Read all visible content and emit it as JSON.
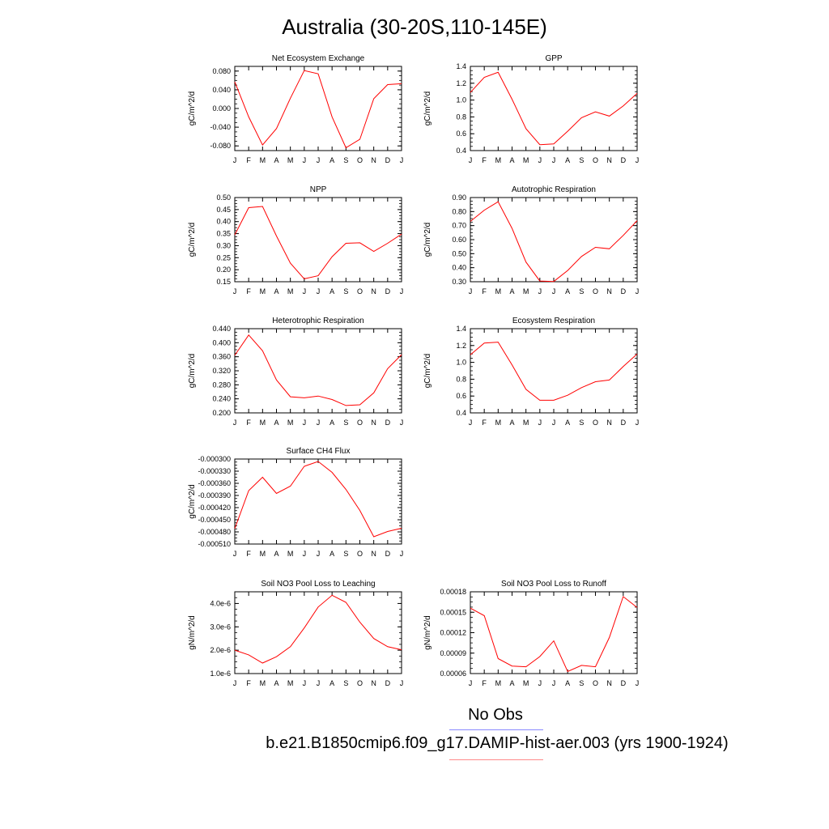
{
  "page": {
    "title": "Australia (30-20S,110-145E)",
    "legend": {
      "obs_label": "No Obs",
      "obs_color": "#8a8aff",
      "model_label": "b.e21.B1850cmip6.f09_g17.DAMIP-hist-aer.003 (yrs 1900-1924)",
      "model_color": "#ff0000"
    }
  },
  "chart_data": [
    {
      "type": "line",
      "title": "Net Ecosystem Exchange",
      "ylabel": "gC/m^2/d",
      "categories": [
        "J",
        "F",
        "M",
        "A",
        "M",
        "J",
        "J",
        "A",
        "S",
        "O",
        "N",
        "D",
        "J"
      ],
      "ylim": [
        -0.09,
        0.09
      ],
      "yticks": [
        -0.08,
        -0.04,
        0.0,
        0.04,
        0.08
      ],
      "ytick_labels": [
        "-0.080",
        "-0.040",
        "0.000",
        "0.040",
        "0.080"
      ],
      "series": [
        {
          "values": [
            0.057,
            -0.018,
            -0.078,
            -0.043,
            0.022,
            0.081,
            0.074,
            -0.018,
            -0.084,
            -0.066,
            0.021,
            0.051,
            0.053
          ]
        }
      ]
    },
    {
      "type": "line",
      "title": "GPP",
      "ylabel": "gC/m^2/d",
      "categories": [
        "J",
        "F",
        "M",
        "A",
        "M",
        "J",
        "J",
        "A",
        "S",
        "O",
        "N",
        "D",
        "J"
      ],
      "ylim": [
        0.4,
        1.4
      ],
      "yticks": [
        0.4,
        0.6,
        0.8,
        1.0,
        1.2,
        1.4
      ],
      "ytick_labels": [
        "0.4",
        "0.6",
        "0.8",
        "1.0",
        "1.2",
        "1.4"
      ],
      "series": [
        {
          "values": [
            1.09,
            1.27,
            1.33,
            1.01,
            0.66,
            0.47,
            0.48,
            0.63,
            0.79,
            0.86,
            0.81,
            0.93,
            1.08
          ]
        }
      ]
    },
    {
      "type": "line",
      "title": "NPP",
      "ylabel": "gC/m^2/d",
      "categories": [
        "J",
        "F",
        "M",
        "A",
        "M",
        "J",
        "J",
        "A",
        "S",
        "O",
        "N",
        "D",
        "J"
      ],
      "ylim": [
        0.15,
        0.5
      ],
      "yticks": [
        0.15,
        0.2,
        0.25,
        0.3,
        0.35,
        0.4,
        0.45,
        0.5
      ],
      "ytick_labels": [
        "0.15",
        "0.20",
        "0.25",
        "0.30",
        "0.35",
        "0.40",
        "0.45",
        "0.50"
      ],
      "series": [
        {
          "values": [
            0.345,
            0.458,
            0.463,
            0.34,
            0.227,
            0.162,
            0.175,
            0.254,
            0.31,
            0.312,
            0.276,
            0.31,
            0.348
          ]
        }
      ]
    },
    {
      "type": "line",
      "title": "Autotrophic Respiration",
      "ylabel": "gC/m^2/d",
      "categories": [
        "J",
        "F",
        "M",
        "A",
        "M",
        "J",
        "J",
        "A",
        "S",
        "O",
        "N",
        "D",
        "J"
      ],
      "ylim": [
        0.3,
        0.9
      ],
      "yticks": [
        0.3,
        0.4,
        0.5,
        0.6,
        0.7,
        0.8,
        0.9
      ],
      "ytick_labels": [
        "0.30",
        "0.40",
        "0.50",
        "0.60",
        "0.70",
        "0.80",
        "0.90"
      ],
      "series": [
        {
          "values": [
            0.73,
            0.81,
            0.87,
            0.68,
            0.44,
            0.305,
            0.302,
            0.38,
            0.48,
            0.545,
            0.535,
            0.63,
            0.735
          ]
        }
      ]
    },
    {
      "type": "line",
      "title": "Heterotrophic Respiration",
      "ylabel": "gC/m^2/d",
      "categories": [
        "J",
        "F",
        "M",
        "A",
        "M",
        "J",
        "J",
        "A",
        "S",
        "O",
        "N",
        "D",
        "J"
      ],
      "ylim": [
        0.2,
        0.44
      ],
      "yticks": [
        0.2,
        0.24,
        0.28,
        0.32,
        0.36,
        0.4,
        0.44
      ],
      "ytick_labels": [
        "0.200",
        "0.240",
        "0.280",
        "0.320",
        "0.360",
        "0.400",
        "0.440"
      ],
      "series": [
        {
          "values": [
            0.364,
            0.422,
            0.377,
            0.294,
            0.246,
            0.243,
            0.248,
            0.238,
            0.221,
            0.223,
            0.257,
            0.326,
            0.366
          ]
        }
      ]
    },
    {
      "type": "line",
      "title": "Ecosystem Respiration",
      "ylabel": "gC/m^2/d",
      "categories": [
        "J",
        "F",
        "M",
        "A",
        "M",
        "J",
        "J",
        "A",
        "S",
        "O",
        "N",
        "D",
        "J"
      ],
      "ylim": [
        0.4,
        1.4
      ],
      "yticks": [
        0.4,
        0.6,
        0.8,
        1.0,
        1.2,
        1.4
      ],
      "ytick_labels": [
        "0.4",
        "0.6",
        "0.8",
        "1.0",
        "1.2",
        "1.4"
      ],
      "series": [
        {
          "values": [
            1.09,
            1.23,
            1.24,
            0.97,
            0.68,
            0.55,
            0.55,
            0.61,
            0.7,
            0.77,
            0.79,
            0.95,
            1.1
          ]
        }
      ]
    },
    {
      "type": "line",
      "title": "Surface CH4 Flux",
      "ylabel": "gC/m^2/d",
      "categories": [
        "J",
        "F",
        "M",
        "A",
        "M",
        "J",
        "J",
        "A",
        "S",
        "O",
        "N",
        "D",
        "J"
      ],
      "ylim": [
        -0.00051,
        -0.0003
      ],
      "yticks": [
        -0.00051,
        -0.00048,
        -0.00045,
        -0.00042,
        -0.00039,
        -0.00036,
        -0.00033,
        -0.0003
      ],
      "ytick_labels": [
        "-0.000510",
        "-0.000480",
        "-0.000450",
        "-0.000420",
        "-0.000390",
        "-0.000360",
        "-0.000330",
        "-0.000300"
      ],
      "series": [
        {
          "values": [
            -0.000472,
            -0.000378,
            -0.000345,
            -0.000385,
            -0.000367,
            -0.000318,
            -0.000306,
            -0.000333,
            -0.000375,
            -0.000427,
            -0.000492,
            -0.000479,
            -0.000471
          ]
        }
      ]
    },
    {
      "type": "line",
      "title": "Soil NO3 Pool Loss to Leaching",
      "ylabel": "gN/m^2/d",
      "categories": [
        "J",
        "F",
        "M",
        "A",
        "M",
        "J",
        "J",
        "A",
        "S",
        "O",
        "N",
        "D",
        "J"
      ],
      "ylim": [
        1e-06,
        4.5e-06
      ],
      "yticks": [
        1e-06,
        2e-06,
        3e-06,
        4e-06
      ],
      "ytick_labels": [
        "1.0e-6",
        "2.0e-6",
        "3.0e-6",
        "4.0e-6"
      ],
      "series": [
        {
          "values": [
            2e-06,
            1.8e-06,
            1.45e-06,
            1.72e-06,
            2.15e-06,
            2.95e-06,
            3.85e-06,
            4.35e-06,
            4.05e-06,
            3.2e-06,
            2.5e-06,
            2.15e-06,
            2.02e-06
          ]
        }
      ]
    },
    {
      "type": "line",
      "title": "Soil NO3 Pool Loss to Runoff",
      "ylabel": "gN/m^2/d",
      "categories": [
        "J",
        "F",
        "M",
        "A",
        "M",
        "J",
        "J",
        "A",
        "S",
        "O",
        "N",
        "D",
        "J"
      ],
      "ylim": [
        6e-05,
        0.00018
      ],
      "yticks": [
        6e-05,
        9e-05,
        0.00012,
        0.00015,
        0.00018
      ],
      "ytick_labels": [
        "0.00006",
        "0.00009",
        "0.00012",
        "0.00015",
        "0.00018"
      ],
      "series": [
        {
          "values": [
            0.000156,
            0.000145,
            8.2e-05,
            7.1e-05,
            7e-05,
            8.5e-05,
            0.000108,
            6.3e-05,
            7.2e-05,
            7e-05,
            0.000113,
            0.000173,
            0.000157
          ]
        }
      ]
    }
  ]
}
